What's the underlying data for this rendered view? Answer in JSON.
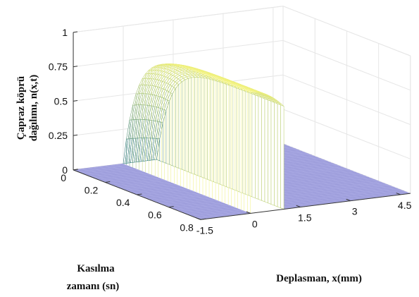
{
  "chart_data": {
    "type": "surface",
    "title": "",
    "xlabel": "Deplasman, x(mm)",
    "ylabel_lines": [
      "Kasılma",
      "zamanı (sn)"
    ],
    "zlabel_lines": [
      "Çapraz köprü",
      "dağılımı, n(x,t)"
    ],
    "x_ticks": [
      "-1.5",
      "0",
      "1.5",
      "3",
      "4.5"
    ],
    "y_ticks": [
      "0",
      "0.2",
      "0.4",
      "0.6",
      "0.8"
    ],
    "z_ticks": [
      "0",
      "0.25",
      "0.5",
      "0.75",
      "1"
    ],
    "xlim": [
      -1.5,
      4.8
    ],
    "ylim": [
      0,
      0.8
    ],
    "zlim": [
      0,
      1
    ],
    "grid": true,
    "surface": {
      "attached_region_x": [
        0,
        1
      ],
      "y_range": [
        0,
        0.8
      ],
      "formula": "n = 0.88 * (1 - exp(-12 t)) * (1 - 0.15 x^2) for 0 <= x <= 1, otherwise 0",
      "peak_value": 0.88
    },
    "colors": {
      "flat": "#a9a9e3",
      "mesh_low": "#1f6f80",
      "mesh_high": "#f2f27a",
      "grid": "#e6e6e6",
      "axis": "#333333"
    }
  }
}
